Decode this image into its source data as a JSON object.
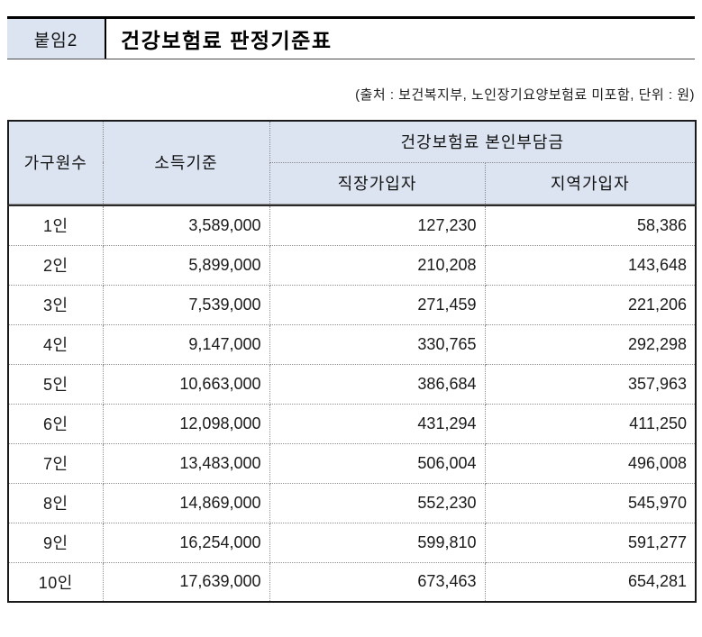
{
  "banner": {
    "badge": "붙임2",
    "title": "건강보험료 판정기준표"
  },
  "source_note": "(출처 : 보건복지부, 노인장기요양보험료 미포함, 단위 : 원)",
  "table": {
    "header": {
      "household": "가구원수",
      "income": "소득기준",
      "premium_group": "건강보험료 본인부담금",
      "workplace": "직장가입자",
      "regional": "지역가입자"
    },
    "rows": [
      {
        "household": "1인",
        "income": "3,589,000",
        "workplace": "127,230",
        "regional": "58,386"
      },
      {
        "household": "2인",
        "income": "5,899,000",
        "workplace": "210,208",
        "regional": "143,648"
      },
      {
        "household": "3인",
        "income": "7,539,000",
        "workplace": "271,459",
        "regional": "221,206"
      },
      {
        "household": "4인",
        "income": "9,147,000",
        "workplace": "330,765",
        "regional": "292,298"
      },
      {
        "household": "5인",
        "income": "10,663,000",
        "workplace": "386,684",
        "regional": "357,963"
      },
      {
        "household": "6인",
        "income": "12,098,000",
        "workplace": "431,294",
        "regional": "411,250"
      },
      {
        "household": "7인",
        "income": "13,483,000",
        "workplace": "506,004",
        "regional": "496,008"
      },
      {
        "household": "8인",
        "income": "14,869,000",
        "workplace": "552,230",
        "regional": "545,970"
      },
      {
        "household": "9인",
        "income": "16,254,000",
        "workplace": "599,810",
        "regional": "591,277"
      },
      {
        "household": "10인",
        "income": "17,639,000",
        "workplace": "673,463",
        "regional": "654,281"
      }
    ],
    "colors": {
      "header_bg": "#dce4f2",
      "badge_bg": "#dce4f2",
      "outer_border": "#1a1a1a",
      "dotted_divider": "#8f8f8f",
      "thick_rule": "#2a2a2a"
    }
  }
}
